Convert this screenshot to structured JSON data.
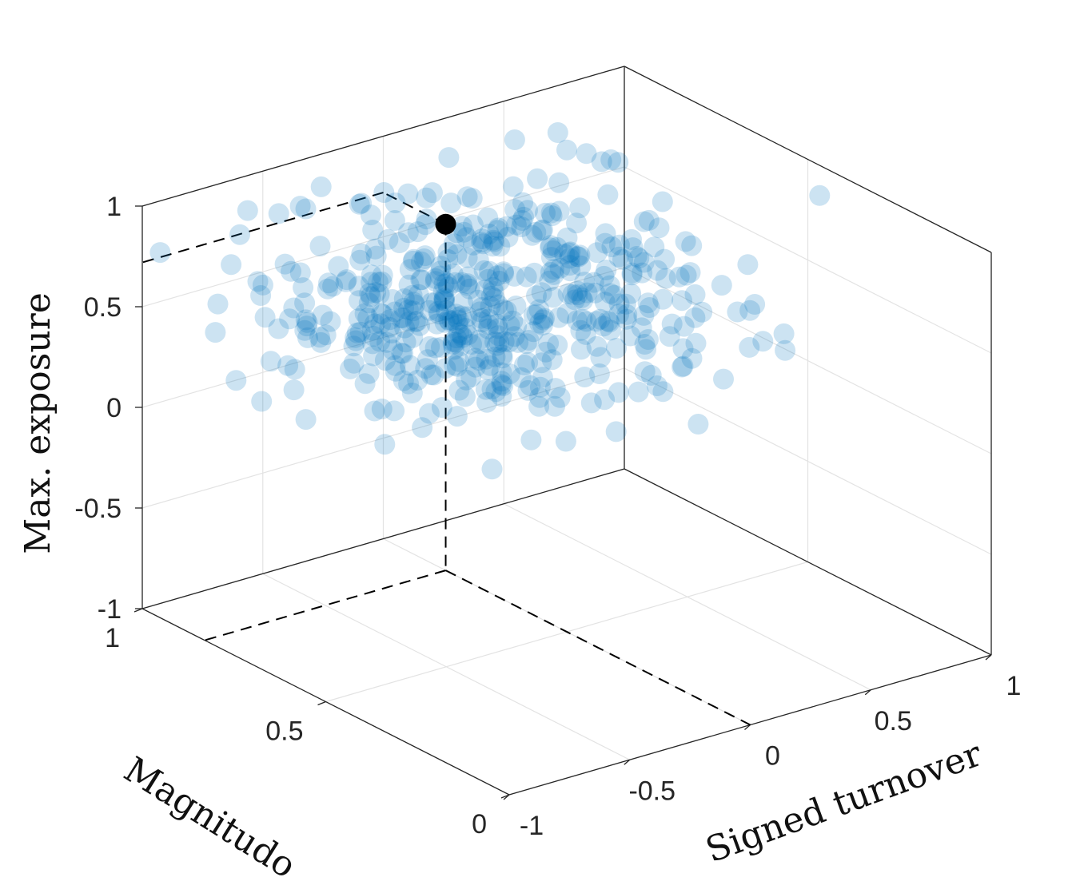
{
  "chart_data": {
    "type": "scatter",
    "projection": "3d",
    "grid": true,
    "xlabel": "Signed turnover",
    "ylabel": "Magnitudo",
    "zlabel": "Max. exposure",
    "xlim": [
      -1,
      1
    ],
    "ylim": [
      0,
      1
    ],
    "zlim": [
      -1,
      1
    ],
    "x_ticks": [
      "-1",
      "-0.5",
      "0",
      "0.5",
      "1"
    ],
    "y_ticks": [
      "0",
      "0.5",
      "1"
    ],
    "z_ticks": [
      "-1",
      "-0.5",
      "0",
      "0.5",
      "1"
    ],
    "series": [
      {
        "color": "#0072BD",
        "alpha": 0.2,
        "marker": "filled-circle",
        "count": 500,
        "x_mean": -0.1,
        "x_spread": 0.38,
        "y_mean": 0.62,
        "y_spread": 0.17,
        "z_mean": 0.58,
        "z_spread": 0.24
      }
    ],
    "highlight_point": {
      "x": 0.0,
      "y": 0.83,
      "z": 0.72,
      "color": "#000000",
      "dashed_projections": true
    }
  }
}
